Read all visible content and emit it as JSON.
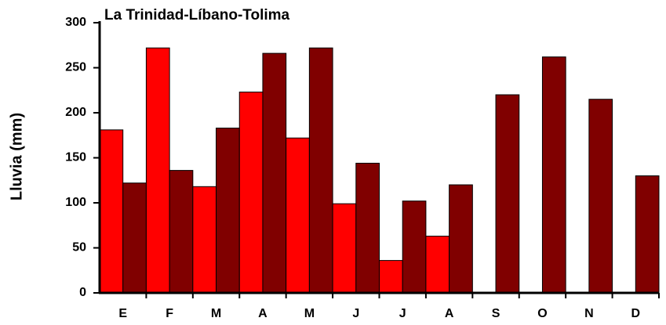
{
  "chart_data": {
    "type": "bar",
    "title": "La Trinidad-Líbano-Tolima",
    "y_label": "Lluvia (mm)",
    "categories": [
      "E",
      "F",
      "M",
      "A",
      "M",
      "J",
      "J",
      "A",
      "S",
      "O",
      "N",
      "D"
    ],
    "series": [
      {
        "color": "#ff0000",
        "values": [
          181,
          272,
          118,
          223,
          172,
          99,
          36,
          63,
          null,
          null,
          null,
          null
        ]
      },
      {
        "color": "#800000",
        "values": [
          122,
          136,
          183,
          266,
          272,
          144,
          102,
          120,
          220,
          262,
          215,
          130
        ]
      }
    ],
    "ylim": [
      0,
      300
    ],
    "yticks": [
      0,
      50,
      100,
      150,
      200,
      250,
      300
    ]
  }
}
